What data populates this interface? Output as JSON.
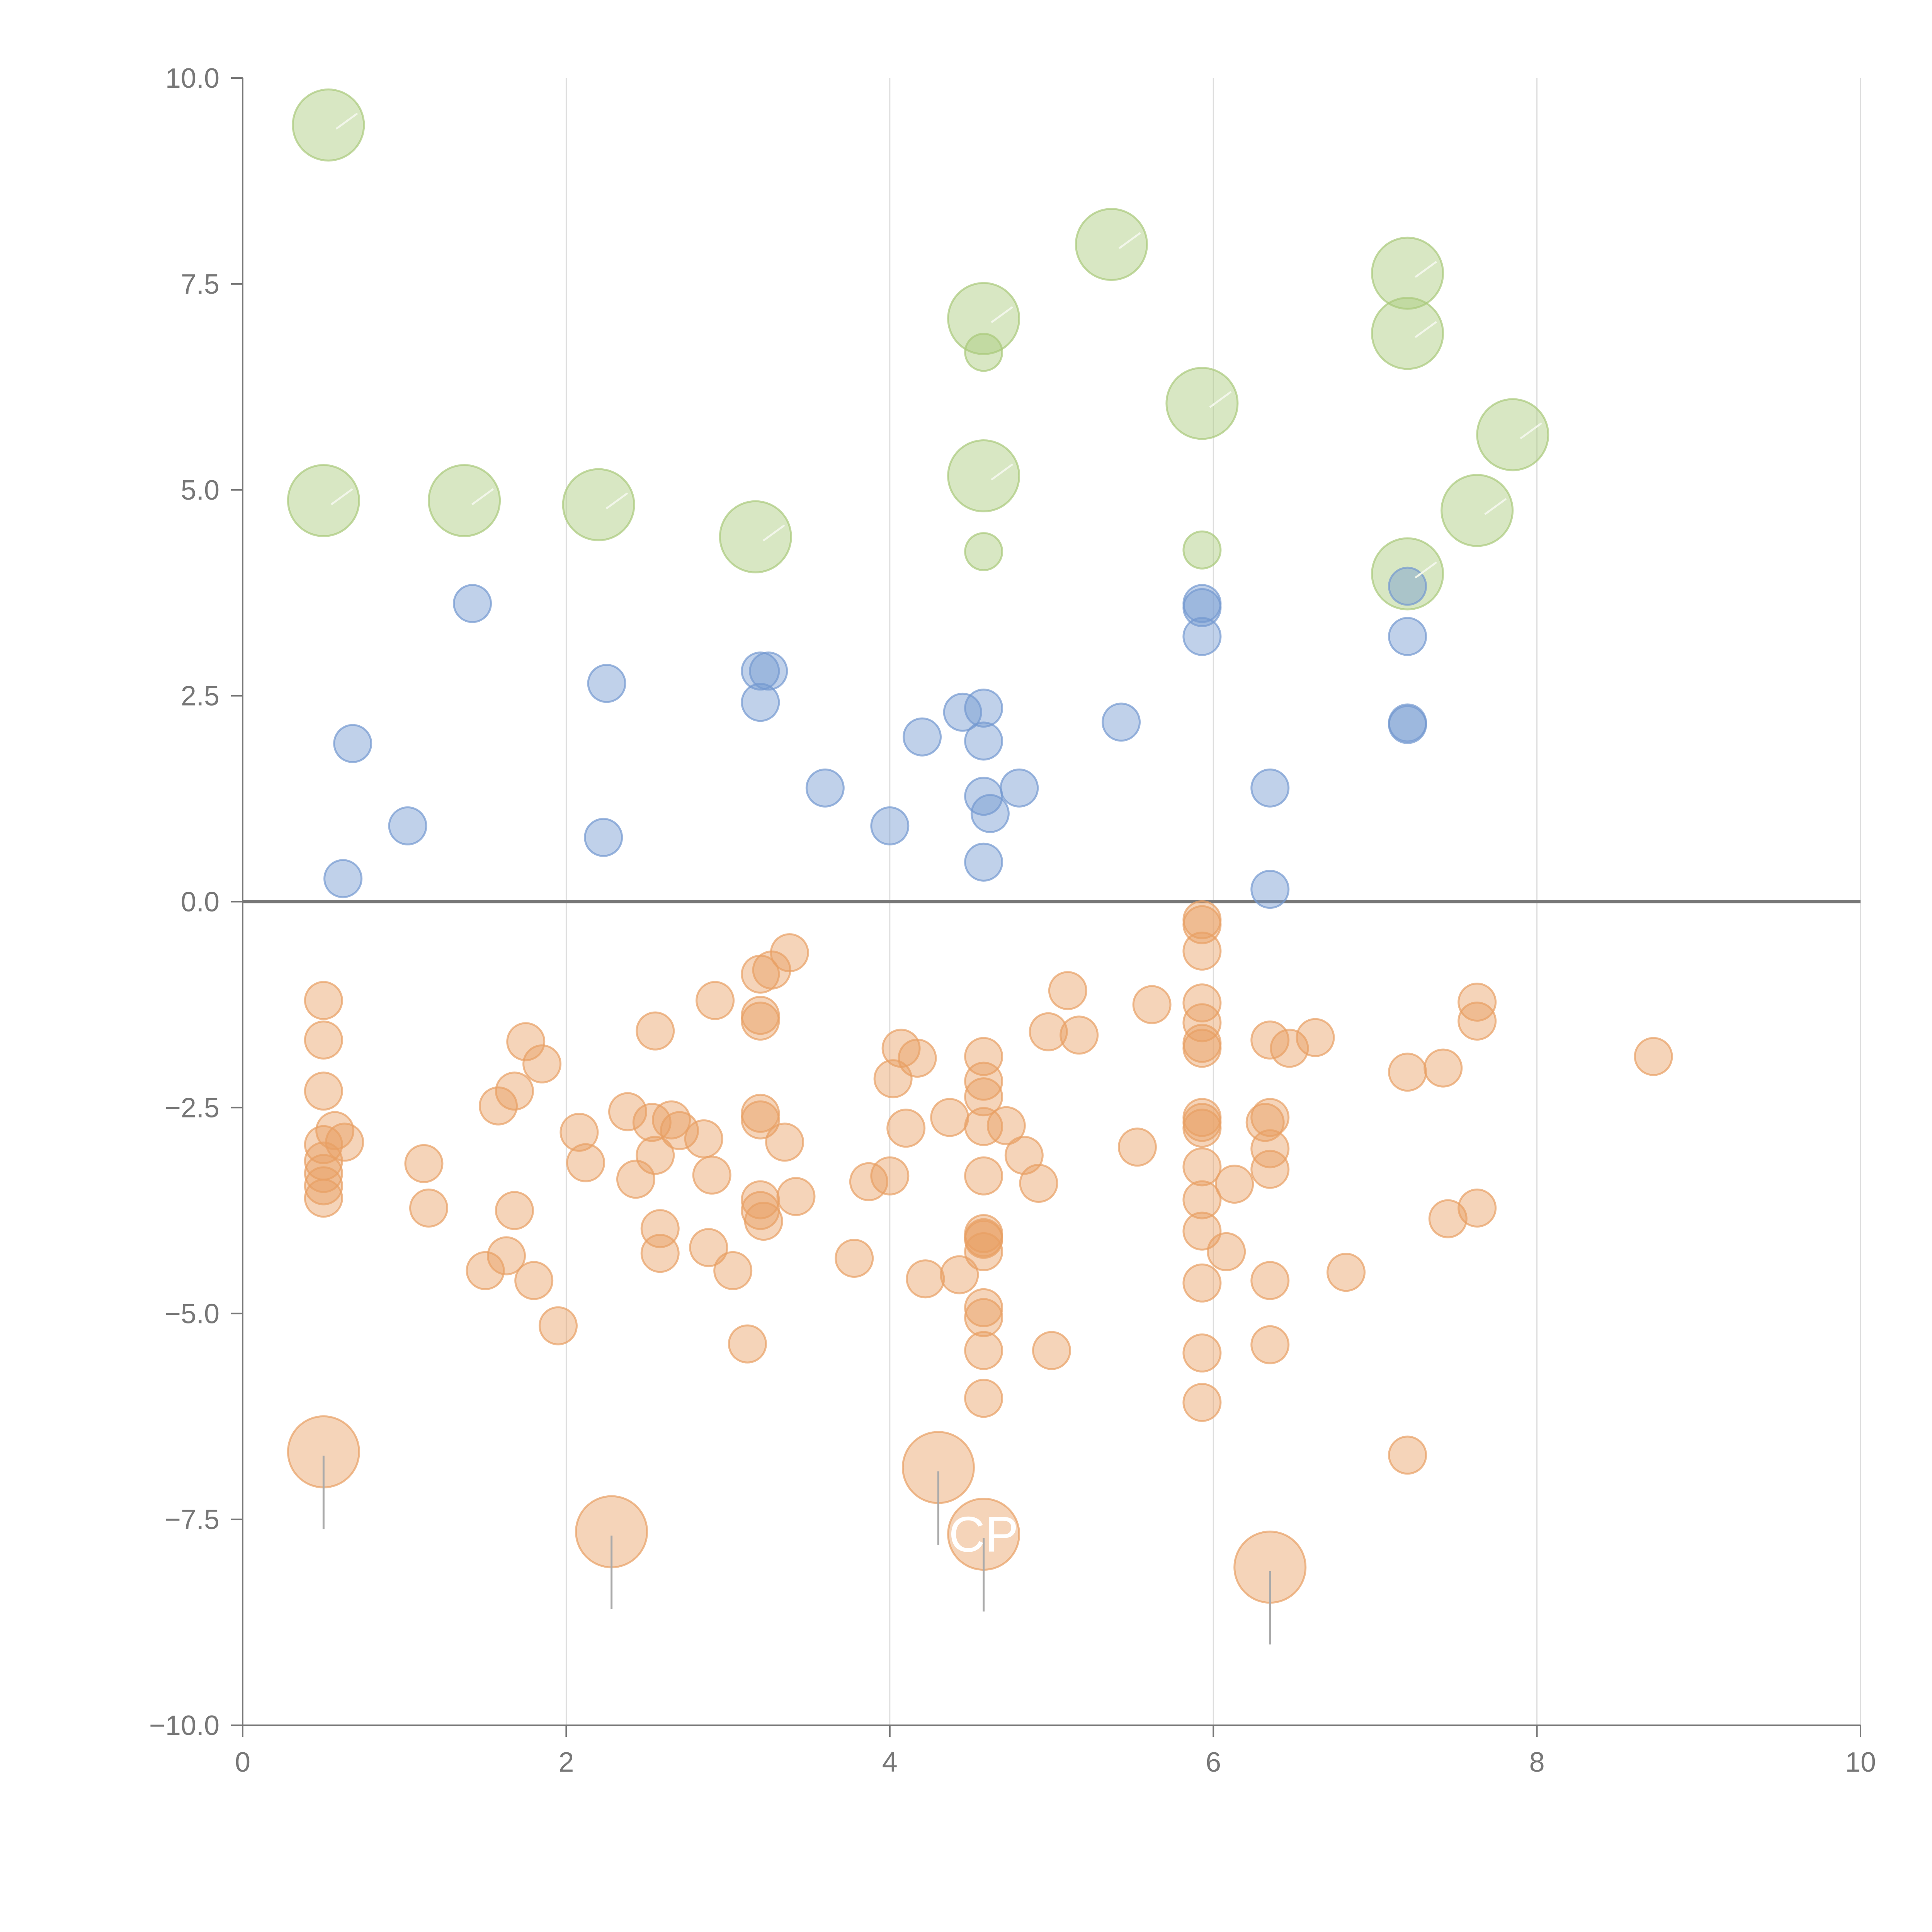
{
  "chart_data": {
    "type": "scatter",
    "title": "",
    "xlabel": "",
    "ylabel": "",
    "xlim": [
      0,
      10
    ],
    "ylim": [
      -10,
      10
    ],
    "grid": "vertical",
    "legend": "none",
    "x_ticks": [
      0,
      2,
      4,
      6,
      8,
      10
    ],
    "x_tick_labels": [
      "0",
      "2",
      "4",
      "6",
      "8",
      "10"
    ],
    "y_ticks": [
      -10,
      -7.5,
      -5,
      -2.5,
      0,
      2.5,
      5,
      7.5,
      10
    ],
    "y_tick_labels": [
      "−10.0",
      "−7.5",
      "−5.0",
      "−2.5",
      "0.0",
      "2.5",
      "5.0",
      "7.5",
      "10.0"
    ],
    "colors": {
      "green": "#a9c97a",
      "blue": "#7399d0",
      "orange": "#e8a064",
      "axis": "#777777",
      "grid": "#dddddd",
      "zero_line": "#777777"
    },
    "series": [
      {
        "name": "green-large",
        "color": "green",
        "size": "large",
        "points": [
          [
            0.53,
            9.43
          ],
          [
            0.5,
            4.87
          ],
          [
            1.37,
            4.87
          ],
          [
            2.2,
            4.82
          ],
          [
            3.17,
            4.43
          ],
          [
            4.58,
            7.08
          ],
          [
            4.58,
            5.17
          ],
          [
            5.37,
            7.98
          ],
          [
            5.93,
            6.05
          ],
          [
            7.2,
            7.63
          ],
          [
            7.2,
            6.9
          ],
          [
            7.2,
            3.98
          ],
          [
            7.63,
            4.75
          ],
          [
            7.85,
            5.67
          ]
        ]
      },
      {
        "name": "green-small",
        "color": "green",
        "size": "small",
        "points": [
          [
            4.58,
            6.67
          ],
          [
            4.58,
            4.25
          ],
          [
            5.93,
            4.27
          ]
        ]
      },
      {
        "name": "blue",
        "color": "blue",
        "size": "small",
        "points": [
          [
            0.62,
            0.28
          ],
          [
            0.68,
            1.92
          ],
          [
            1.02,
            0.92
          ],
          [
            1.42,
            3.62
          ],
          [
            2.23,
            0.78
          ],
          [
            2.25,
            2.65
          ],
          [
            3.2,
            2.42
          ],
          [
            3.2,
            2.8
          ],
          [
            3.25,
            2.8
          ],
          [
            3.6,
            1.38
          ],
          [
            4.0,
            0.92
          ],
          [
            4.2,
            2.0
          ],
          [
            4.45,
            2.3
          ],
          [
            4.58,
            2.35
          ],
          [
            4.58,
            1.95
          ],
          [
            4.58,
            1.28
          ],
          [
            4.62,
            1.07
          ],
          [
            4.8,
            1.38
          ],
          [
            4.58,
            0.48
          ],
          [
            5.43,
            2.18
          ],
          [
            5.93,
            3.62
          ],
          [
            5.93,
            3.57
          ],
          [
            5.93,
            3.22
          ],
          [
            6.35,
            1.38
          ],
          [
            6.35,
            0.15
          ],
          [
            7.2,
            3.83
          ],
          [
            7.2,
            3.22
          ],
          [
            7.2,
            2.17
          ],
          [
            7.2,
            2.15
          ]
        ]
      },
      {
        "name": "orange-small",
        "color": "orange",
        "size": "small",
        "points": [
          [
            0.5,
            -1.2
          ],
          [
            0.5,
            -1.68
          ],
          [
            0.5,
            -2.3
          ],
          [
            0.5,
            -2.95
          ],
          [
            0.5,
            -3.15
          ],
          [
            0.5,
            -3.3
          ],
          [
            0.5,
            -3.45
          ],
          [
            0.5,
            -3.6
          ],
          [
            0.57,
            -2.78
          ],
          [
            0.63,
            -2.92
          ],
          [
            1.12,
            -3.18
          ],
          [
            1.15,
            -3.72
          ],
          [
            1.5,
            -4.48
          ],
          [
            1.58,
            -2.48
          ],
          [
            1.63,
            -4.3
          ],
          [
            1.68,
            -2.3
          ],
          [
            1.68,
            -3.75
          ],
          [
            1.75,
            -1.7
          ],
          [
            1.8,
            -4.6
          ],
          [
            1.85,
            -1.97
          ],
          [
            1.95,
            -5.15
          ],
          [
            2.08,
            -2.8
          ],
          [
            2.12,
            -3.17
          ],
          [
            2.38,
            -2.55
          ],
          [
            2.43,
            -3.37
          ],
          [
            2.53,
            -2.68
          ],
          [
            2.55,
            -1.57
          ],
          [
            2.55,
            -3.08
          ],
          [
            2.58,
            -3.97
          ],
          [
            2.58,
            -4.27
          ],
          [
            2.65,
            -2.65
          ],
          [
            2.7,
            -2.78
          ],
          [
            2.85,
            -2.88
          ],
          [
            2.88,
            -4.2
          ],
          [
            2.9,
            -3.32
          ],
          [
            2.92,
            -1.2
          ],
          [
            3.03,
            -4.48
          ],
          [
            3.12,
            -5.37
          ],
          [
            3.2,
            -0.88
          ],
          [
            3.2,
            -1.38
          ],
          [
            3.2,
            -1.45
          ],
          [
            3.2,
            -2.57
          ],
          [
            3.2,
            -2.65
          ],
          [
            3.2,
            -3.62
          ],
          [
            3.2,
            -3.75
          ],
          [
            3.22,
            -3.88
          ],
          [
            3.27,
            -0.83
          ],
          [
            3.35,
            -2.92
          ],
          [
            3.38,
            -0.62
          ],
          [
            3.42,
            -3.58
          ],
          [
            3.78,
            -4.33
          ],
          [
            3.87,
            -3.4
          ],
          [
            4.0,
            -3.33
          ],
          [
            4.02,
            -2.15
          ],
          [
            4.07,
            -1.78
          ],
          [
            4.1,
            -2.75
          ],
          [
            4.17,
            -1.9
          ],
          [
            4.22,
            -4.58
          ],
          [
            4.37,
            -2.62
          ],
          [
            4.43,
            -4.53
          ],
          [
            4.58,
            -1.88
          ],
          [
            4.58,
            -2.18
          ],
          [
            4.58,
            -2.37
          ],
          [
            4.58,
            -2.73
          ],
          [
            4.58,
            -3.33
          ],
          [
            4.58,
            -4.03
          ],
          [
            4.58,
            -4.08
          ],
          [
            4.58,
            -4.1
          ],
          [
            4.58,
            -4.25
          ],
          [
            4.58,
            -4.93
          ],
          [
            4.58,
            -5.05
          ],
          [
            4.58,
            -5.45
          ],
          [
            4.58,
            -6.03
          ],
          [
            4.72,
            -2.72
          ],
          [
            4.83,
            -3.08
          ],
          [
            4.92,
            -3.42
          ],
          [
            4.98,
            -1.58
          ],
          [
            5.0,
            -5.45
          ],
          [
            5.1,
            -1.08
          ],
          [
            5.17,
            -1.62
          ],
          [
            5.53,
            -2.98
          ],
          [
            5.62,
            -1.25
          ],
          [
            5.93,
            -0.22
          ],
          [
            5.93,
            -0.28
          ],
          [
            5.93,
            -0.6
          ],
          [
            5.93,
            -1.23
          ],
          [
            5.93,
            -1.47
          ],
          [
            5.93,
            -1.72
          ],
          [
            5.93,
            -1.78
          ],
          [
            5.93,
            -2.62
          ],
          [
            5.93,
            -2.68
          ],
          [
            5.93,
            -2.75
          ],
          [
            5.93,
            -3.22
          ],
          [
            5.93,
            -3.62
          ],
          [
            5.93,
            -4.0
          ],
          [
            5.93,
            -4.63
          ],
          [
            5.93,
            -5.48
          ],
          [
            5.93,
            -6.08
          ],
          [
            6.08,
            -4.25
          ],
          [
            6.13,
            -3.43
          ],
          [
            6.32,
            -2.68
          ],
          [
            6.35,
            -1.68
          ],
          [
            6.35,
            -2.62
          ],
          [
            6.35,
            -3.0
          ],
          [
            6.35,
            -3.25
          ],
          [
            6.35,
            -4.6
          ],
          [
            6.35,
            -5.38
          ],
          [
            6.47,
            -1.78
          ],
          [
            6.63,
            -1.65
          ],
          [
            6.82,
            -4.5
          ],
          [
            7.2,
            -2.07
          ],
          [
            7.2,
            -6.72
          ],
          [
            7.42,
            -2.02
          ],
          [
            7.45,
            -3.85
          ],
          [
            7.63,
            -1.22
          ],
          [
            7.63,
            -1.45
          ],
          [
            7.63,
            -3.72
          ],
          [
            8.72,
            -1.88
          ]
        ]
      },
      {
        "name": "orange-large",
        "color": "orange",
        "size": "large",
        "points": [
          [
            0.5,
            -6.68
          ],
          [
            2.28,
            -7.65
          ],
          [
            4.3,
            -6.87
          ],
          [
            4.58,
            -7.68
          ],
          [
            6.35,
            -8.08
          ]
        ]
      }
    ],
    "annotations": [
      {
        "text": "CP",
        "x": 4.58,
        "y": -7.68
      }
    ]
  }
}
